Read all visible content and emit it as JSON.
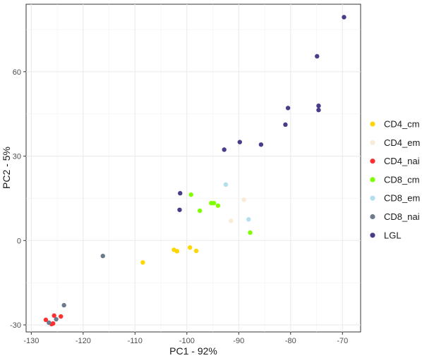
{
  "chart_data": {
    "type": "scatter",
    "xlabel": "PC1 - 92%",
    "ylabel": "PC2 - 5%",
    "xlim": [
      -131,
      -66.5
    ],
    "ylim": [
      -32.5,
      84
    ],
    "x_ticks": [
      -130,
      -120,
      -110,
      -100,
      -90,
      -80,
      -70
    ],
    "y_ticks": [
      -30,
      0,
      30,
      60
    ],
    "grid": true,
    "legend_position": "right",
    "series": [
      {
        "name": "CD4_cm",
        "color": "#ffd700",
        "points": [
          {
            "x": -108.5,
            "y": -7.8
          },
          {
            "x": -102.5,
            "y": -3.3
          },
          {
            "x": -101.9,
            "y": -3.8
          },
          {
            "x": -99.4,
            "y": -2.5
          },
          {
            "x": -98.2,
            "y": -3.7
          }
        ]
      },
      {
        "name": "CD4_em",
        "color": "#faebd7",
        "points": [
          {
            "x": -91.5,
            "y": 7.0
          },
          {
            "x": -89.0,
            "y": 14.5
          }
        ]
      },
      {
        "name": "CD4_nai",
        "color": "#ff3030",
        "points": [
          {
            "x": -127.2,
            "y": -28.2
          },
          {
            "x": -126.1,
            "y": -29.7
          },
          {
            "x": -125.6,
            "y": -26.7
          },
          {
            "x": -125.8,
            "y": -29.5
          },
          {
            "x": -124.3,
            "y": -27.0
          }
        ]
      },
      {
        "name": "CD8_cm",
        "color": "#7fff00",
        "points": [
          {
            "x": -99.2,
            "y": 16.3
          },
          {
            "x": -97.5,
            "y": 10.6
          },
          {
            "x": -95.3,
            "y": 13.3
          },
          {
            "x": -94.8,
            "y": 13.3
          },
          {
            "x": -94.0,
            "y": 12.4
          },
          {
            "x": -87.8,
            "y": 2.8
          }
        ]
      },
      {
        "name": "CD8_em",
        "color": "#b2dfee",
        "points": [
          {
            "x": -92.5,
            "y": 19.9
          },
          {
            "x": -88.1,
            "y": 7.5
          }
        ]
      },
      {
        "name": "CD8_nai",
        "color": "#6c7b8b",
        "points": [
          {
            "x": -116.2,
            "y": -5.5
          },
          {
            "x": -123.7,
            "y": -23.0
          },
          {
            "x": -126.6,
            "y": -29.2
          },
          {
            "x": -125.2,
            "y": -28.0
          }
        ]
      },
      {
        "name": "LGL",
        "color": "#483d8b",
        "points": [
          {
            "x": -101.3,
            "y": 16.8
          },
          {
            "x": -101.4,
            "y": 10.9
          },
          {
            "x": -92.8,
            "y": 32.3
          },
          {
            "x": -89.8,
            "y": 35.0
          },
          {
            "x": -85.7,
            "y": 34.1
          },
          {
            "x": -81.0,
            "y": 41.2
          },
          {
            "x": -80.5,
            "y": 47.1
          },
          {
            "x": -74.9,
            "y": 65.5
          },
          {
            "x": -74.6,
            "y": 47.9
          },
          {
            "x": -74.6,
            "y": 46.4
          },
          {
            "x": -69.7,
            "y": 79.4
          }
        ]
      }
    ]
  }
}
